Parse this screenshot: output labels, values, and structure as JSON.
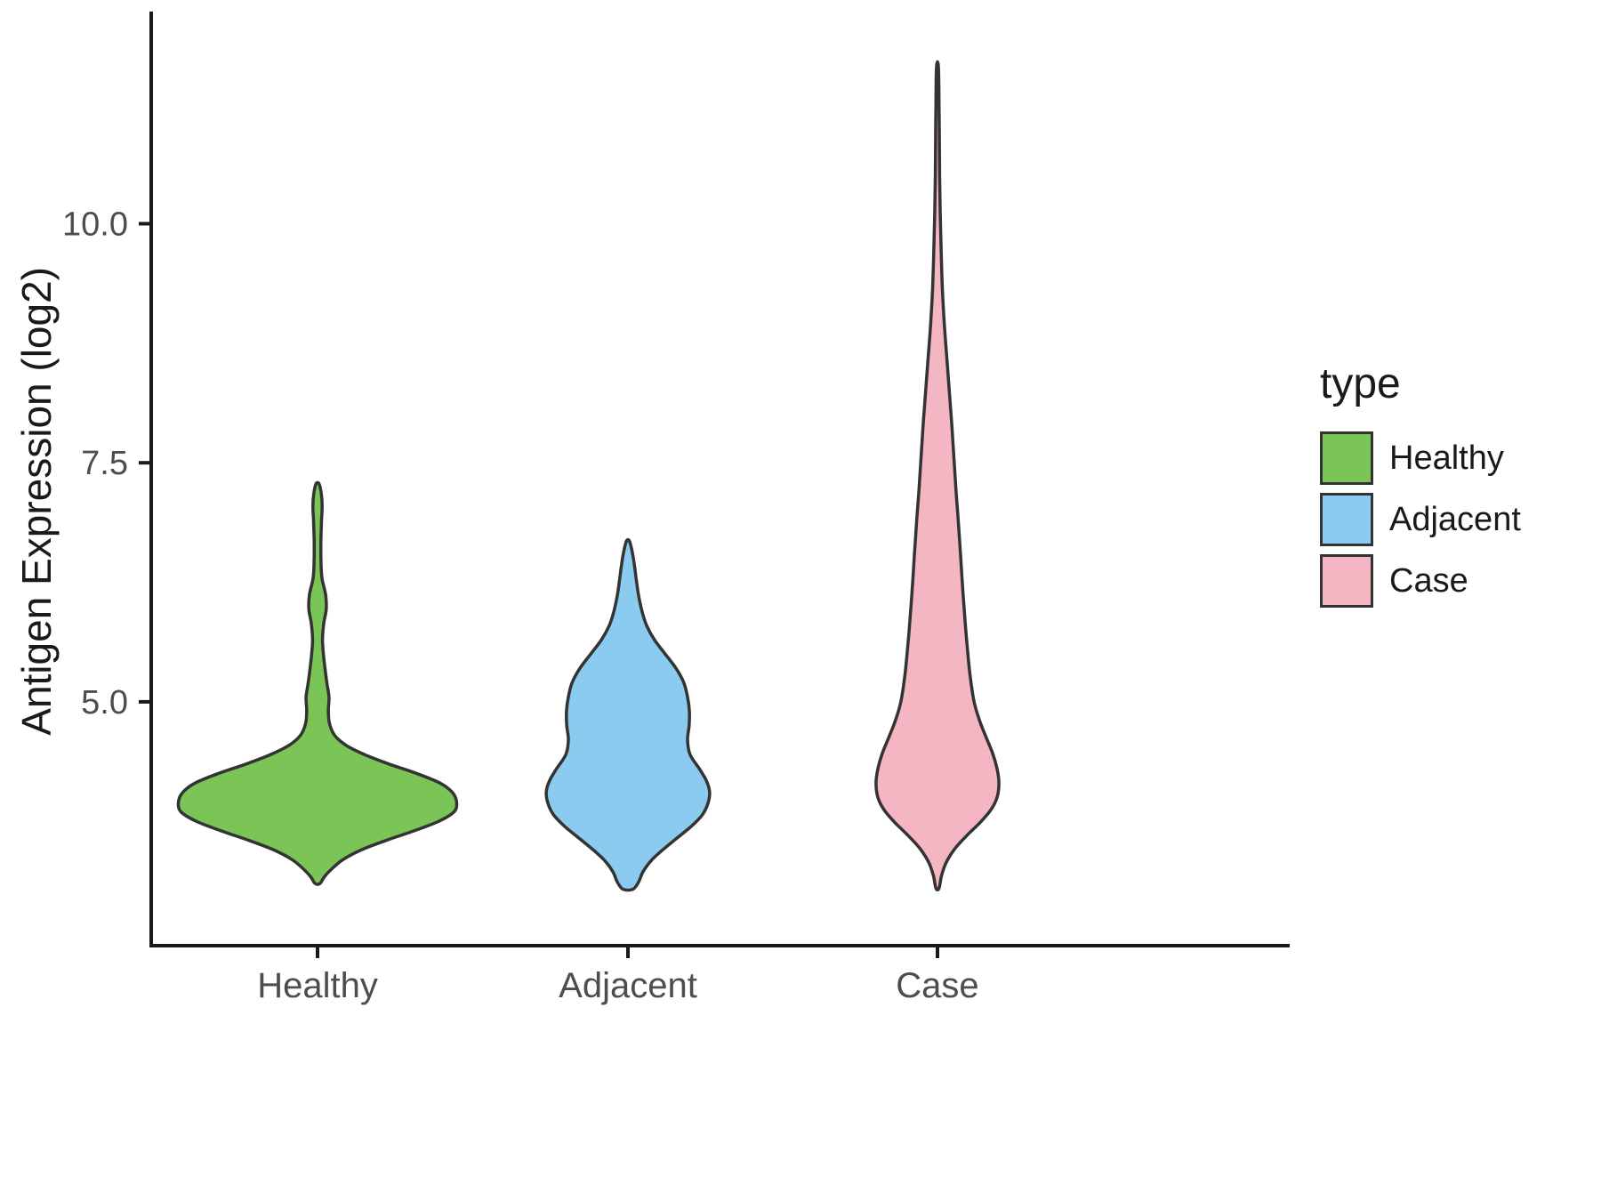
{
  "chart_data": {
    "type": "violin",
    "title": "",
    "xlabel": "",
    "ylabel": "Antigen Expression (log2)",
    "categories": [
      "Healthy",
      "Adjacent",
      "Case"
    ],
    "y_ticks": [
      {
        "value": 5.0,
        "label": "5.0"
      },
      {
        "value": 7.5,
        "label": "7.5"
      },
      {
        "value": 10.0,
        "label": "10.0"
      }
    ],
    "ylim": [
      2.45,
      12.2
    ],
    "grid": false,
    "legend": {
      "title": "type",
      "position": "right",
      "entries": [
        {
          "label": "Healthy",
          "color": "#7AC556"
        },
        {
          "label": "Adjacent",
          "color": "#8BCBEF"
        },
        {
          "label": "Case",
          "color": "#F4B6C2"
        }
      ]
    },
    "colors": {
      "axis": "#1a1a1a",
      "tick_text": "#4d4d4d",
      "axis_title_text": "#1a1a1a",
      "legend_text": "#1a1a1a",
      "outline": "#333333",
      "background": "#ffffff"
    },
    "violins": [
      {
        "name": "Healthy",
        "color": "#7AC556",
        "points": [
          [
            7.28,
            0.005
          ],
          [
            7.18,
            0.012
          ],
          [
            7.05,
            0.015
          ],
          [
            6.9,
            0.013
          ],
          [
            6.7,
            0.011
          ],
          [
            6.5,
            0.011
          ],
          [
            6.3,
            0.014
          ],
          [
            6.12,
            0.026
          ],
          [
            5.97,
            0.028
          ],
          [
            5.82,
            0.02
          ],
          [
            5.65,
            0.016
          ],
          [
            5.5,
            0.019
          ],
          [
            5.35,
            0.024
          ],
          [
            5.2,
            0.03
          ],
          [
            5.05,
            0.037
          ],
          [
            4.92,
            0.035
          ],
          [
            4.78,
            0.038
          ],
          [
            4.65,
            0.055
          ],
          [
            4.55,
            0.09
          ],
          [
            4.45,
            0.15
          ],
          [
            4.35,
            0.23
          ],
          [
            4.25,
            0.32
          ],
          [
            4.15,
            0.395
          ],
          [
            4.05,
            0.435
          ],
          [
            3.95,
            0.448
          ],
          [
            3.85,
            0.44
          ],
          [
            3.75,
            0.39
          ],
          [
            3.65,
            0.31
          ],
          [
            3.55,
            0.22
          ],
          [
            3.45,
            0.14
          ],
          [
            3.35,
            0.082
          ],
          [
            3.25,
            0.045
          ],
          [
            3.17,
            0.022
          ],
          [
            3.1,
            0.008
          ]
        ]
      },
      {
        "name": "Adjacent",
        "color": "#8BCBEF",
        "points": [
          [
            6.68,
            0.005
          ],
          [
            6.55,
            0.015
          ],
          [
            6.4,
            0.022
          ],
          [
            6.25,
            0.028
          ],
          [
            6.1,
            0.035
          ],
          [
            5.95,
            0.045
          ],
          [
            5.8,
            0.06
          ],
          [
            5.65,
            0.085
          ],
          [
            5.5,
            0.12
          ],
          [
            5.35,
            0.155
          ],
          [
            5.2,
            0.18
          ],
          [
            5.05,
            0.192
          ],
          [
            4.9,
            0.198
          ],
          [
            4.75,
            0.197
          ],
          [
            4.6,
            0.192
          ],
          [
            4.45,
            0.2
          ],
          [
            4.3,
            0.23
          ],
          [
            4.18,
            0.252
          ],
          [
            4.06,
            0.263
          ],
          [
            3.94,
            0.258
          ],
          [
            3.82,
            0.24
          ],
          [
            3.7,
            0.205
          ],
          [
            3.58,
            0.16
          ],
          [
            3.46,
            0.115
          ],
          [
            3.34,
            0.075
          ],
          [
            3.22,
            0.048
          ],
          [
            3.12,
            0.035
          ],
          [
            3.04,
            0.016
          ]
        ]
      },
      {
        "name": "Case",
        "color": "#F4B6C2",
        "points": [
          [
            11.65,
            0.003
          ],
          [
            11.3,
            0.005
          ],
          [
            10.9,
            0.006
          ],
          [
            10.5,
            0.007
          ],
          [
            10.1,
            0.009
          ],
          [
            9.7,
            0.012
          ],
          [
            9.3,
            0.016
          ],
          [
            8.95,
            0.022
          ],
          [
            8.6,
            0.03
          ],
          [
            8.25,
            0.038
          ],
          [
            7.9,
            0.046
          ],
          [
            7.55,
            0.053
          ],
          [
            7.2,
            0.06
          ],
          [
            6.85,
            0.068
          ],
          [
            6.5,
            0.075
          ],
          [
            6.15,
            0.082
          ],
          [
            5.8,
            0.09
          ],
          [
            5.5,
            0.098
          ],
          [
            5.25,
            0.106
          ],
          [
            5.0,
            0.118
          ],
          [
            4.8,
            0.136
          ],
          [
            4.62,
            0.158
          ],
          [
            4.46,
            0.178
          ],
          [
            4.3,
            0.192
          ],
          [
            4.15,
            0.198
          ],
          [
            4.0,
            0.192
          ],
          [
            3.87,
            0.172
          ],
          [
            3.74,
            0.138
          ],
          [
            3.6,
            0.094
          ],
          [
            3.46,
            0.055
          ],
          [
            3.32,
            0.028
          ],
          [
            3.18,
            0.013
          ],
          [
            3.05,
            0.005
          ]
        ]
      }
    ]
  }
}
